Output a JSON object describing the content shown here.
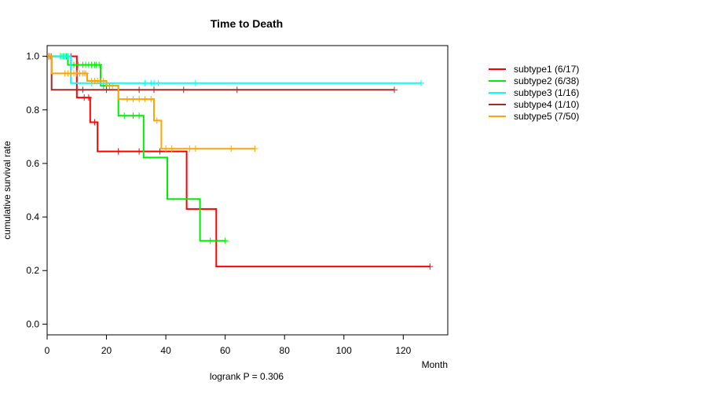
{
  "chart_data": {
    "type": "line",
    "title": "Time to Death",
    "xlabel": "Month",
    "ylabel": "cumulative survival rate",
    "xlim": [
      0,
      135
    ],
    "ylim": [
      -0.04,
      1.04
    ],
    "xticks": [
      "0",
      "20",
      "40",
      "60",
      "80",
      "100",
      "120"
    ],
    "yticks": [
      "0.0",
      "0.2",
      "0.4",
      "0.6",
      "0.8",
      "1.0"
    ],
    "annotation": "logrank P = 0.306",
    "legend_position": "right",
    "series": [
      {
        "name": "subtype1 (6/17)",
        "color": "#ff0000",
        "steps": [
          [
            0,
            1.0
          ],
          [
            10,
            0.846
          ],
          [
            14.5,
            0.754
          ],
          [
            17,
            0.645
          ],
          [
            47,
            0.43
          ],
          [
            57,
            0.215
          ],
          [
            129,
            0.215
          ]
        ],
        "censors": [
          [
            1,
            1.0
          ],
          [
            8,
            1.0
          ],
          [
            12.5,
            0.846
          ],
          [
            14,
            0.846
          ],
          [
            16,
            0.754
          ],
          [
            24,
            0.645
          ],
          [
            31,
            0.645
          ],
          [
            38,
            0.645
          ],
          [
            129,
            0.215
          ]
        ]
      },
      {
        "name": "subtype2 (6/38)",
        "color": "#00ee00",
        "steps": [
          [
            0,
            1.0
          ],
          [
            7,
            0.968
          ],
          [
            18,
            0.89
          ],
          [
            24,
            0.778
          ],
          [
            32.5,
            0.622
          ],
          [
            40.5,
            0.467
          ],
          [
            51.5,
            0.311
          ],
          [
            60,
            0.311
          ]
        ],
        "censors": [
          [
            0.5,
            1.0
          ],
          [
            1.5,
            1.0
          ],
          [
            4.5,
            1.0
          ],
          [
            5.5,
            1.0
          ],
          [
            6.5,
            1.0
          ],
          [
            9,
            0.968
          ],
          [
            10.5,
            0.968
          ],
          [
            12,
            0.968
          ],
          [
            13,
            0.968
          ],
          [
            14,
            0.968
          ],
          [
            15,
            0.968
          ],
          [
            16,
            0.968
          ],
          [
            16.5,
            0.968
          ],
          [
            17.5,
            0.968
          ],
          [
            19,
            0.89
          ],
          [
            20,
            0.89
          ],
          [
            21,
            0.89
          ],
          [
            26,
            0.778
          ],
          [
            29,
            0.778
          ],
          [
            31,
            0.778
          ],
          [
            55,
            0.311
          ],
          [
            60,
            0.311
          ]
        ],
        "censors_note": ""
      },
      {
        "name": "subtype3 (1/16)",
        "color": "#00ffff",
        "steps": [
          [
            0,
            1.0
          ],
          [
            8,
            0.9
          ],
          [
            126,
            0.9
          ]
        ],
        "censors": [
          [
            0.5,
            1.0
          ],
          [
            5,
            1.0
          ],
          [
            6,
            1.0
          ],
          [
            7,
            1.0
          ],
          [
            15,
            0.9
          ],
          [
            18,
            0.9
          ],
          [
            33,
            0.9
          ],
          [
            35,
            0.9
          ],
          [
            36,
            0.9
          ],
          [
            37.5,
            0.9
          ],
          [
            50,
            0.9
          ],
          [
            126,
            0.9
          ]
        ]
      },
      {
        "name": "subtype4 (1/10)",
        "color": "#a52a2a",
        "steps": [
          [
            0,
            1.0
          ],
          [
            1.5,
            0.875
          ],
          [
            117,
            0.875
          ]
        ],
        "censors": [
          [
            0.5,
            1.0
          ],
          [
            12,
            0.875
          ],
          [
            20,
            0.875
          ],
          [
            31,
            0.875
          ],
          [
            36,
            0.875
          ],
          [
            46,
            0.875
          ],
          [
            64,
            0.875
          ],
          [
            117,
            0.875
          ]
        ]
      },
      {
        "name": "subtype5 (7/50)",
        "color": "#ffa500",
        "steps": [
          [
            0,
            1.0
          ],
          [
            1.5,
            0.936
          ],
          [
            13.5,
            0.908
          ],
          [
            20,
            0.89
          ],
          [
            24,
            0.84
          ],
          [
            36,
            0.76
          ],
          [
            38.5,
            0.655
          ],
          [
            70,
            0.655
          ]
        ],
        "censors": [
          [
            0.5,
            1.0
          ],
          [
            1,
            1.0
          ],
          [
            6,
            0.936
          ],
          [
            7,
            0.936
          ],
          [
            8,
            0.936
          ],
          [
            9,
            0.936
          ],
          [
            10,
            0.936
          ],
          [
            11,
            0.936
          ],
          [
            12,
            0.936
          ],
          [
            12.5,
            0.936
          ],
          [
            13,
            0.936
          ],
          [
            15,
            0.908
          ],
          [
            16,
            0.908
          ],
          [
            17,
            0.908
          ],
          [
            18,
            0.908
          ],
          [
            19,
            0.908
          ],
          [
            22,
            0.89
          ],
          [
            27,
            0.84
          ],
          [
            29,
            0.84
          ],
          [
            31,
            0.84
          ],
          [
            33,
            0.84
          ],
          [
            35,
            0.84
          ],
          [
            37,
            0.76
          ],
          [
            40,
            0.655
          ],
          [
            42,
            0.655
          ],
          [
            48,
            0.655
          ],
          [
            50,
            0.655
          ],
          [
            62,
            0.655
          ],
          [
            70,
            0.655
          ]
        ]
      }
    ]
  }
}
